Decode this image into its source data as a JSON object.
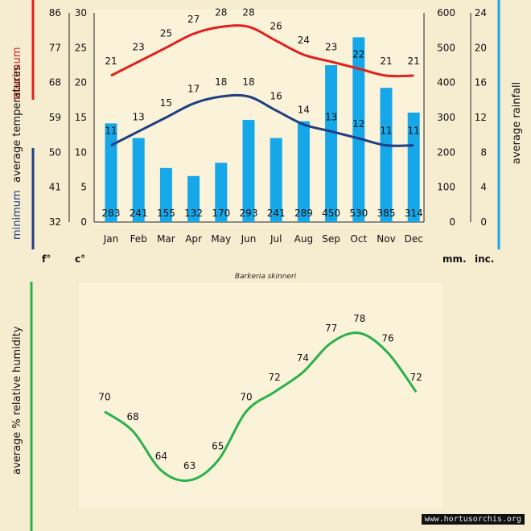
{
  "months": [
    "Jan",
    "Feb",
    "Mar",
    "Apr",
    "May",
    "Jun",
    "Jul",
    "Aug",
    "Sep",
    "Oct",
    "Nov",
    "Dec"
  ],
  "colors": {
    "max": "#e0201c",
    "min": "#1f3f82",
    "rain": "#16a7e8",
    "humidity": "#2ab24a",
    "bg": "#f6ecd0",
    "plot_bg": "#fbf2da"
  },
  "chart_data": [
    {
      "type": "line+bar",
      "title": "Barkeria skinneri",
      "series": [
        {
          "name": "maximum",
          "unit": "°C",
          "values": [
            21,
            23,
            25,
            27,
            28,
            28,
            26,
            24,
            23,
            22,
            21,
            21
          ]
        },
        {
          "name": "minimum",
          "unit": "°C",
          "values": [
            11,
            13,
            15,
            17,
            18,
            18,
            16,
            14,
            13,
            12,
            11,
            11
          ]
        },
        {
          "name": "rainfall",
          "unit": "mm",
          "values": [
            283,
            241,
            155,
            132,
            170,
            293,
            241,
            289,
            450,
            530,
            385,
            314
          ]
        }
      ],
      "celsius_axis": {
        "min": 0,
        "max": 30,
        "ticks": [
          0,
          5,
          10,
          15,
          20,
          25,
          30
        ],
        "unit": "c°"
      },
      "fahrenheit_axis": {
        "ticks": [
          32,
          41,
          50,
          59,
          68,
          77,
          86
        ],
        "unit": "f°"
      },
      "mm_axis": {
        "min": 0,
        "max": 600,
        "ticks": [
          0,
          100,
          200,
          300,
          400,
          500,
          600
        ],
        "unit": "mm."
      },
      "inch_axis": {
        "ticks": [
          0,
          4,
          8,
          12,
          16,
          20,
          24
        ],
        "unit": "inc."
      },
      "labels": {
        "maximum": "maximum",
        "average_temperatures": "average  temperatures",
        "minimum": "minimum",
        "average_rainfall": "average rainfall"
      }
    },
    {
      "type": "line",
      "series": [
        {
          "name": "average % relative humidity",
          "values": [
            70,
            68,
            64,
            63,
            65,
            70,
            72,
            74,
            77,
            78,
            76,
            72
          ]
        }
      ],
      "ylim": [
        60,
        80
      ],
      "ylabel": "average %  relative humidity"
    }
  ],
  "credit": "www.hortusorchis.org"
}
